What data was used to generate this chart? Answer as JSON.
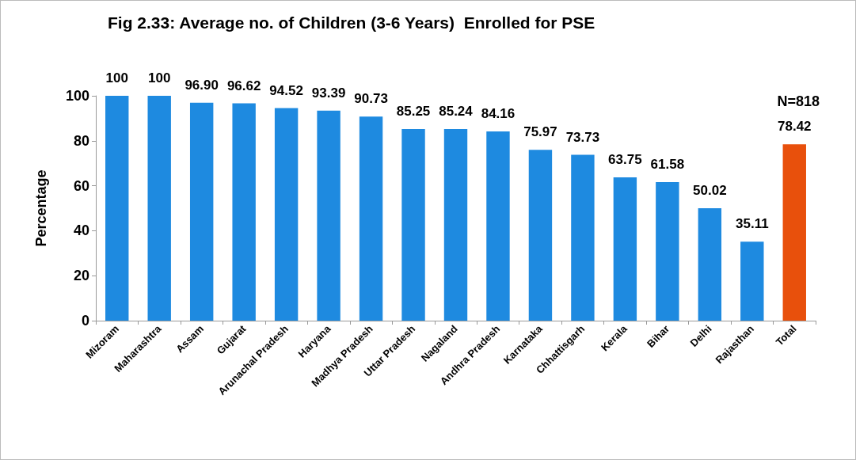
{
  "chart_data": {
    "type": "bar",
    "title": "Fig 2.33: Average no. of Children (3-6 Years)  Enrolled for PSE",
    "ylabel": "Percentage",
    "categories": [
      "Mizoram",
      "Maharashtra",
      "Assam",
      "Gujarat",
      "Arunachal Pradesh",
      "Haryana",
      "Madhya Pradesh",
      "Uttar Pradesh",
      "Nagaland",
      "Andhra Pradesh",
      "Karnataka",
      "Chhattisgarh",
      "Kerala",
      "Bihar",
      "Delhi",
      "Rajasthan",
      "Total"
    ],
    "values": [
      100,
      100,
      96.9,
      96.62,
      94.52,
      93.39,
      90.73,
      85.25,
      85.24,
      84.16,
      75.97,
      73.73,
      63.75,
      61.58,
      50.02,
      35.11,
      78.42
    ],
    "value_labels": [
      "100",
      "100",
      "96.90",
      "96.62",
      "94.52",
      "93.39",
      "90.73",
      "85.25",
      "85.24",
      "84.16",
      "75.97",
      "73.73",
      "63.75",
      "61.58",
      "50.02",
      "35.11",
      "78.42"
    ],
    "colors": [
      "#1e8ae0",
      "#1e8ae0",
      "#1e8ae0",
      "#1e8ae0",
      "#1e8ae0",
      "#1e8ae0",
      "#1e8ae0",
      "#1e8ae0",
      "#1e8ae0",
      "#1e8ae0",
      "#1e8ae0",
      "#1e8ae0",
      "#1e8ae0",
      "#1e8ae0",
      "#1e8ae0",
      "#1e8ae0",
      "#e8500c"
    ],
    "ylim": [
      0,
      100
    ],
    "yticks": [
      0,
      20,
      40,
      60,
      80,
      100
    ],
    "grid": false,
    "annotations": [
      "N=818"
    ]
  }
}
